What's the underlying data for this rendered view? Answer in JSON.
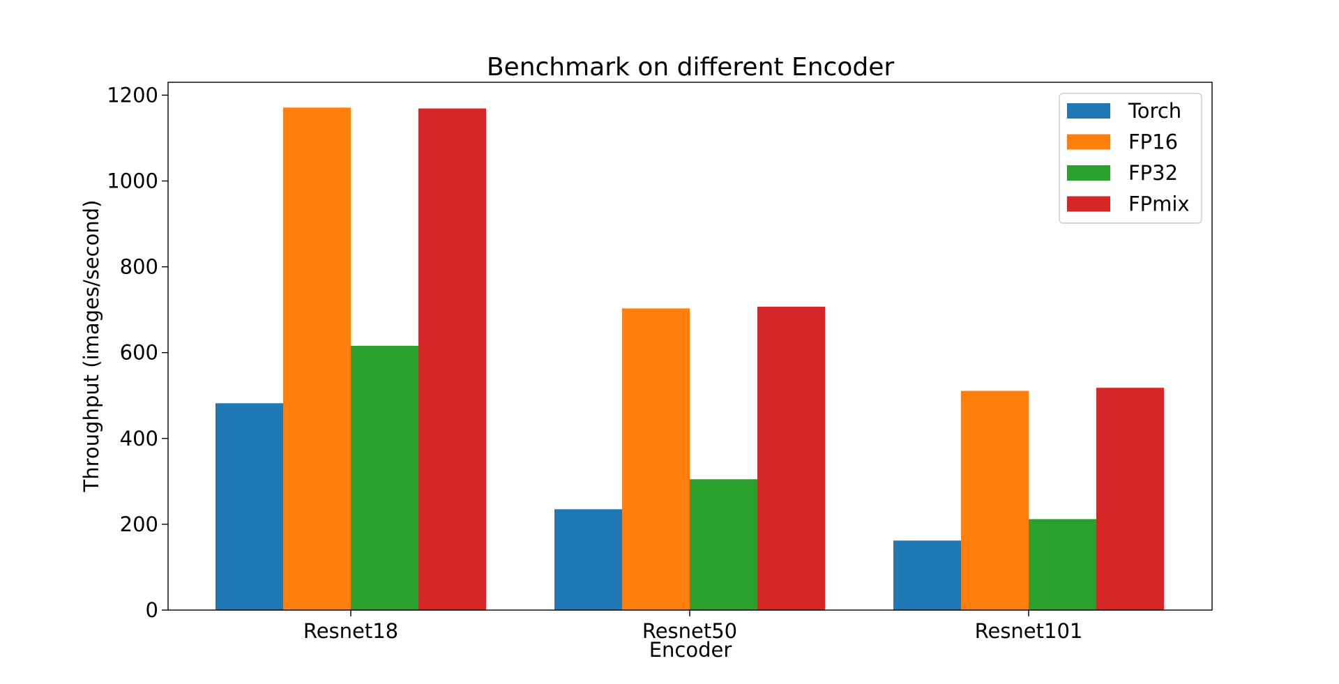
{
  "chart_data": {
    "type": "bar",
    "title": "Benchmark on different Encoder",
    "xlabel": "Encoder",
    "ylabel": "Throughput (images/second)",
    "categories": [
      "Resnet18",
      "Resnet50",
      "Resnet101"
    ],
    "ylim": [
      0,
      1230
    ],
    "yticks": [
      0,
      200,
      400,
      600,
      800,
      1000,
      1200
    ],
    "grid": false,
    "legend_position": "top-right",
    "series": [
      {
        "name": "Torch",
        "color": "#1f77b4",
        "values": [
          482,
          235,
          162
        ]
      },
      {
        "name": "FP16",
        "color": "#ff7f0e",
        "values": [
          1171,
          703,
          511
        ]
      },
      {
        "name": "FP32",
        "color": "#2ca02c",
        "values": [
          616,
          305,
          212
        ]
      },
      {
        "name": "FPmix",
        "color": "#d62728",
        "values": [
          1169,
          707,
          518
        ]
      }
    ]
  }
}
